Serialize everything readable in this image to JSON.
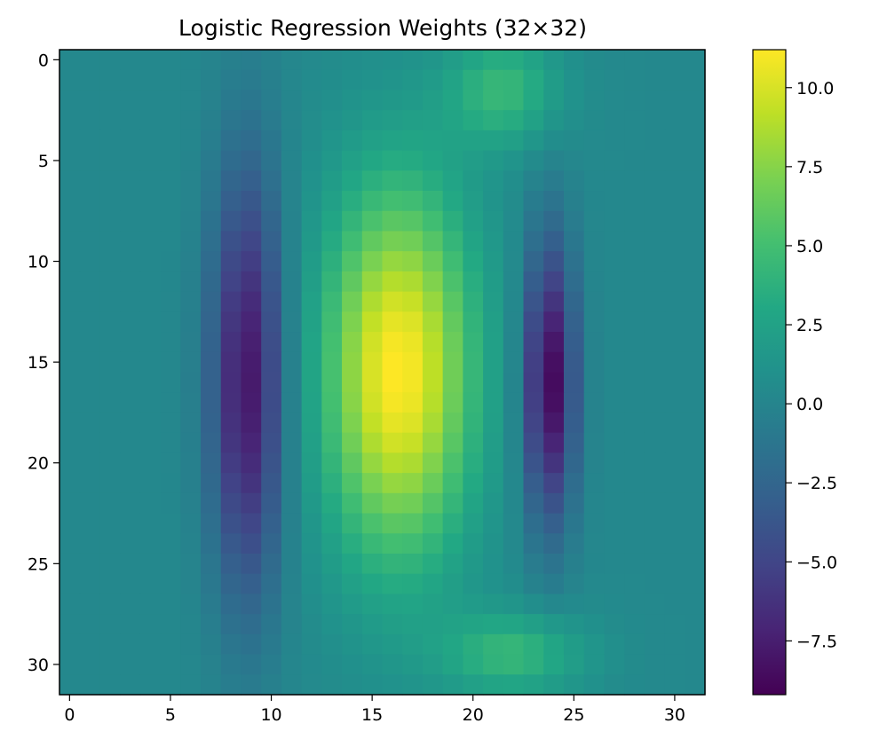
{
  "chart_data": {
    "type": "heatmap",
    "title": "Logistic Regression Weights (32×32)",
    "rows": 32,
    "cols": 32,
    "colormap": "viridis",
    "value_range": [
      -9.2,
      11.2
    ],
    "xlim": [
      -0.5,
      31.5
    ],
    "ylim": [
      31.5,
      -0.5
    ],
    "x_ticks": [
      0,
      5,
      10,
      15,
      20,
      25,
      30
    ],
    "y_ticks": [
      0,
      5,
      10,
      15,
      20,
      25,
      30
    ],
    "colorbar_ticks": [
      10.0,
      7.5,
      5.0,
      2.5,
      0.0,
      -2.5,
      -5.0,
      -7.5
    ],
    "colorbar_tick_labels": [
      "10.0",
      "7.5",
      "5.0",
      "2.5",
      "0.0",
      "−2.5",
      "−5.0",
      "−7.5"
    ],
    "grid": false,
    "features": {
      "background_value": 0.3,
      "center_blob": {
        "row": 15.5,
        "col": 16.3,
        "row_sigma": 6.5,
        "col_sigma": 2.6,
        "peak": 11.0
      },
      "left_trough": {
        "row": 16.0,
        "col": 8.8,
        "row_sigma": 7.5,
        "col_sigma": 1.3,
        "peak": -8.3
      },
      "right_trough": {
        "row": 16.0,
        "col": 23.8,
        "row_sigma": 5.0,
        "col_sigma": 0.9,
        "peak": -9.2
      },
      "top_lobe": {
        "row": 1.5,
        "col": 21.5,
        "row_sigma": 2.0,
        "col_sigma": 2.0,
        "peak": 4.0
      },
      "bottom_lobe": {
        "row": 29.5,
        "col": 22.0,
        "row_sigma": 1.5,
        "col_sigma": 2.5,
        "peak": 4.0
      }
    }
  }
}
